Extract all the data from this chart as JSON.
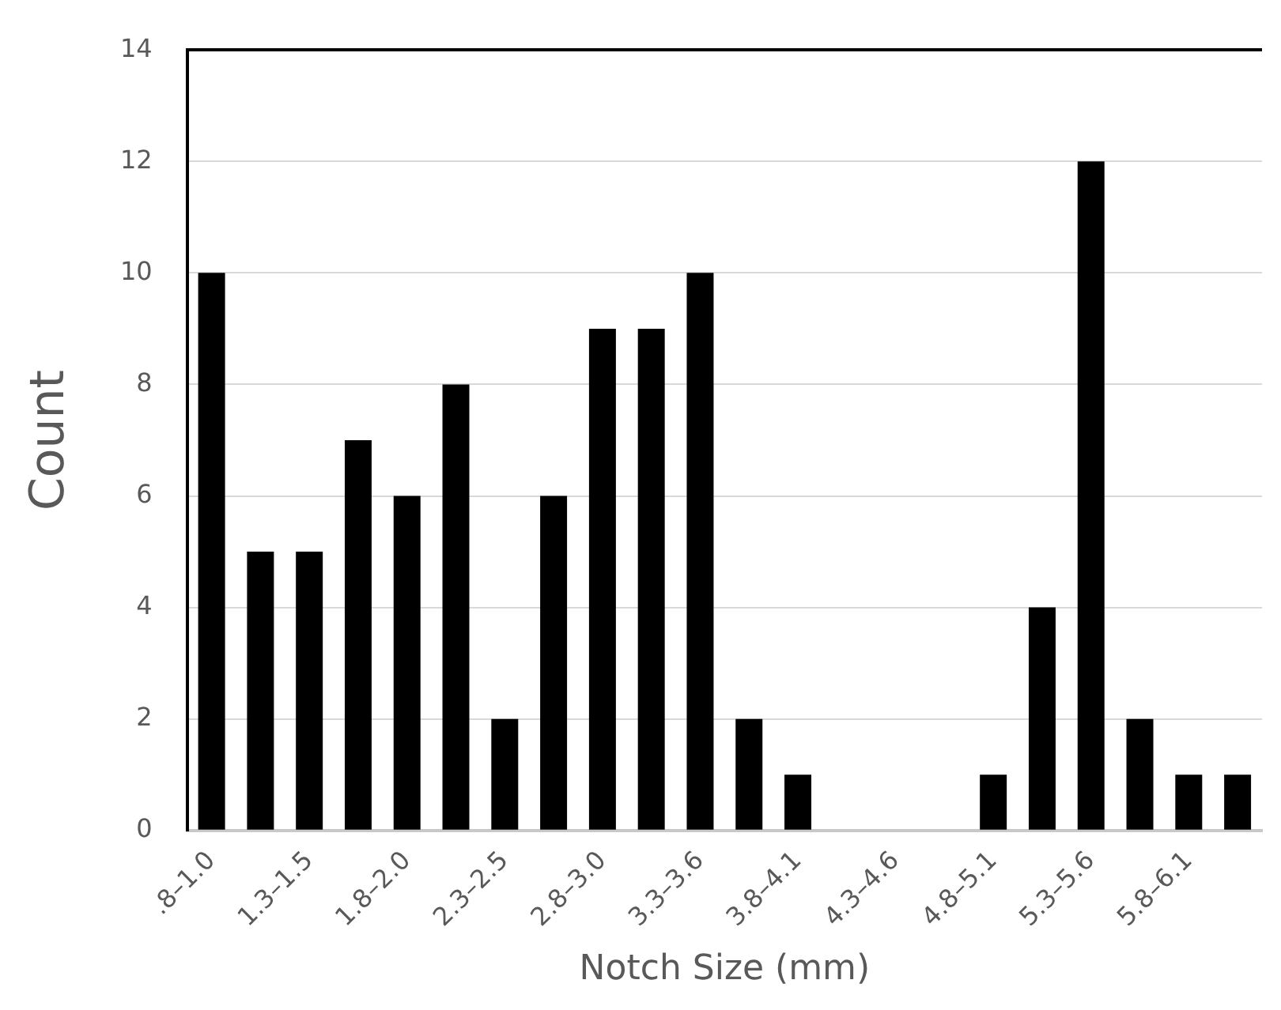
{
  "chart_data": {
    "type": "bar",
    "xlabel": "Notch Size (mm)",
    "ylabel": "Count",
    "categories": [
      ".8–1.0",
      null,
      "1.3–1.5",
      null,
      "1.8–2.0",
      null,
      "2.3–2.5",
      null,
      "2.8–3.0",
      null,
      "3.3–3.6",
      null,
      "3.8–4.1",
      null,
      "4.3–4.6",
      null,
      "4.8–5.1",
      null,
      "5.3–5.6",
      null,
      "5.8–6.1",
      null
    ],
    "values": [
      10,
      5,
      5,
      7,
      6,
      8,
      2,
      6,
      9,
      9,
      10,
      2,
      1,
      0,
      0,
      0,
      1,
      4,
      12,
      2,
      1,
      1
    ],
    "color": "#000000",
    "ylim": [
      0,
      14
    ],
    "yticks": [
      0,
      2,
      4,
      6,
      8,
      10,
      12,
      14
    ],
    "grid": "y",
    "legend": false
  }
}
